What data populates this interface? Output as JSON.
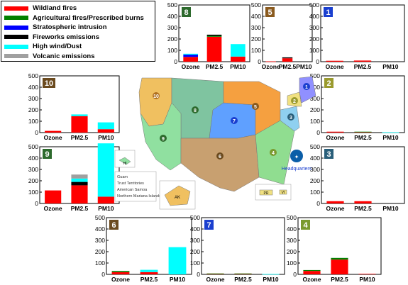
{
  "legend": [
    {
      "name": "Wildland fires",
      "color": "#ff0000"
    },
    {
      "name": "Agricultural fires/Prescribed burns",
      "color": "#008000"
    },
    {
      "name": "Stratospheric intrusion",
      "color": "#0000ff"
    },
    {
      "name": "Fireworks emissions",
      "color": "#000000"
    },
    {
      "name": "High wind/Dust",
      "color": "#00ffff"
    },
    {
      "name": "Volcanic emissions",
      "color": "#a0a0a0"
    }
  ],
  "map": {
    "headquarters_label": "Headquarters",
    "territories": [
      "Guam",
      "Trust Territories",
      "American Samoa",
      "Northern Mariana Islands"
    ],
    "inset_labels": [
      "PR",
      "VI",
      "AK",
      "HI"
    ]
  },
  "chart_data": [
    {
      "type": "bar",
      "region": "8",
      "badge_color": "#2d6a2d",
      "title": "",
      "categories": [
        "Ozone",
        "PM2.5",
        "PM10"
      ],
      "ylim": [
        0,
        500
      ],
      "yticks": [
        0,
        100,
        200,
        300,
        400,
        500
      ],
      "series": [
        {
          "name": "Wildland fires",
          "values": [
            42,
            220,
            45
          ]
        },
        {
          "name": "Agricultural fires/Prescribed burns",
          "values": [
            0,
            8,
            0
          ]
        },
        {
          "name": "Stratospheric intrusion",
          "values": [
            20,
            0,
            0
          ]
        },
        {
          "name": "Fireworks emissions",
          "values": [
            0,
            10,
            0
          ]
        },
        {
          "name": "High wind/Dust",
          "values": [
            8,
            0,
            110
          ]
        },
        {
          "name": "Volcanic emissions",
          "values": [
            0,
            0,
            0
          ]
        }
      ]
    },
    {
      "type": "bar",
      "region": "5",
      "badge_color": "#8a5a1e",
      "title": "",
      "categories": [
        "Ozone",
        "PM2.5",
        "PM10"
      ],
      "ylim": [
        0,
        500
      ],
      "yticks": [
        0,
        100,
        200,
        300,
        400,
        500
      ],
      "series": [
        {
          "name": "Wildland fires",
          "values": [
            3,
            30,
            0
          ]
        },
        {
          "name": "Agricultural fires/Prescribed burns",
          "values": [
            0,
            0,
            0
          ]
        },
        {
          "name": "Stratospheric intrusion",
          "values": [
            0,
            0,
            0
          ]
        },
        {
          "name": "Fireworks emissions",
          "values": [
            0,
            8,
            0
          ]
        },
        {
          "name": "High wind/Dust",
          "values": [
            0,
            0,
            0
          ]
        },
        {
          "name": "Volcanic emissions",
          "values": [
            0,
            0,
            0
          ]
        }
      ]
    },
    {
      "type": "bar",
      "region": "1",
      "badge_color": "#1a3fcf",
      "title": "",
      "categories": [
        "Ozone",
        "PM2.5",
        "PM10"
      ],
      "ylim": [
        0,
        500
      ],
      "yticks": [
        0,
        100,
        200,
        300,
        400,
        500
      ],
      "series": [
        {
          "name": "Wildland fires",
          "values": [
            8,
            10,
            0
          ]
        },
        {
          "name": "Agricultural fires/Prescribed burns",
          "values": [
            0,
            0,
            0
          ]
        },
        {
          "name": "Stratospheric intrusion",
          "values": [
            0,
            0,
            0
          ]
        },
        {
          "name": "Fireworks emissions",
          "values": [
            0,
            0,
            0
          ]
        },
        {
          "name": "High wind/Dust",
          "values": [
            0,
            0,
            0
          ]
        },
        {
          "name": "Volcanic emissions",
          "values": [
            0,
            0,
            0
          ]
        }
      ]
    },
    {
      "type": "bar",
      "region": "10",
      "badge_color": "#6b4a1e",
      "title": "",
      "categories": [
        "Ozone",
        "PM2.5",
        "PM10"
      ],
      "ylim": [
        0,
        500
      ],
      "yticks": [
        0,
        100,
        200,
        300,
        400,
        500
      ],
      "series": [
        {
          "name": "Wildland fires",
          "values": [
            15,
            145,
            30
          ]
        },
        {
          "name": "Agricultural fires/Prescribed burns",
          "values": [
            0,
            0,
            0
          ]
        },
        {
          "name": "Stratospheric intrusion",
          "values": [
            0,
            0,
            0
          ]
        },
        {
          "name": "Fireworks emissions",
          "values": [
            0,
            0,
            0
          ]
        },
        {
          "name": "High wind/Dust",
          "values": [
            0,
            15,
            60
          ]
        },
        {
          "name": "Volcanic emissions",
          "values": [
            0,
            0,
            0
          ]
        }
      ]
    },
    {
      "type": "bar",
      "region": "2",
      "badge_color": "#9a9a2e",
      "title": "",
      "categories": [
        "Ozone",
        "PM2.5",
        "PM10"
      ],
      "ylim": [
        0,
        500
      ],
      "yticks": [
        0,
        100,
        200,
        300,
        400,
        500
      ],
      "series": [
        {
          "name": "Wildland fires",
          "values": [
            8,
            5,
            0
          ]
        },
        {
          "name": "Agricultural fires/Prescribed burns",
          "values": [
            0,
            3,
            0
          ]
        },
        {
          "name": "Stratospheric intrusion",
          "values": [
            0,
            0,
            0
          ]
        },
        {
          "name": "Fireworks emissions",
          "values": [
            0,
            0,
            0
          ]
        },
        {
          "name": "High wind/Dust",
          "values": [
            0,
            0,
            3
          ]
        },
        {
          "name": "Volcanic emissions",
          "values": [
            0,
            0,
            0
          ]
        }
      ]
    },
    {
      "type": "bar",
      "region": "9",
      "badge_color": "#2d6a2d",
      "title": "",
      "categories": [
        "Ozone",
        "PM2.5",
        "PM10"
      ],
      "ylim": [
        0,
        500
      ],
      "yticks": [
        0,
        100,
        200,
        300,
        400,
        500
      ],
      "series": [
        {
          "name": "Wildland fires",
          "values": [
            115,
            160,
            60
          ]
        },
        {
          "name": "Agricultural fires/Prescribed burns",
          "values": [
            0,
            0,
            0
          ]
        },
        {
          "name": "Stratospheric intrusion",
          "values": [
            0,
            0,
            0
          ]
        },
        {
          "name": "Fireworks emissions",
          "values": [
            0,
            30,
            0
          ]
        },
        {
          "name": "High wind/Dust",
          "values": [
            0,
            30,
            470
          ]
        },
        {
          "name": "Volcanic emissions",
          "values": [
            0,
            35,
            0
          ]
        }
      ]
    },
    {
      "type": "bar",
      "region": "3",
      "badge_color": "#2a5f7a",
      "title": "",
      "categories": [
        "Ozone",
        "PM2.5",
        "PM10"
      ],
      "ylim": [
        0,
        500
      ],
      "yticks": [
        0,
        100,
        200,
        300,
        400,
        500
      ],
      "series": [
        {
          "name": "Wildland fires",
          "values": [
            20,
            20,
            0
          ]
        },
        {
          "name": "Agricultural fires/Prescribed burns",
          "values": [
            0,
            0,
            0
          ]
        },
        {
          "name": "Stratospheric intrusion",
          "values": [
            0,
            0,
            0
          ]
        },
        {
          "name": "Fireworks emissions",
          "values": [
            0,
            0,
            0
          ]
        },
        {
          "name": "High wind/Dust",
          "values": [
            0,
            0,
            0
          ]
        },
        {
          "name": "Volcanic emissions",
          "values": [
            0,
            0,
            0
          ]
        }
      ]
    },
    {
      "type": "bar",
      "region": "6",
      "badge_color": "#6b4a1e",
      "title": "",
      "categories": [
        "Ozone",
        "PM2.5",
        "PM10"
      ],
      "ylim": [
        0,
        500
      ],
      "yticks": [
        0,
        100,
        200,
        300,
        400,
        500
      ],
      "series": [
        {
          "name": "Wildland fires",
          "values": [
            20,
            20,
            0
          ]
        },
        {
          "name": "Agricultural fires/Prescribed burns",
          "values": [
            10,
            0,
            0
          ]
        },
        {
          "name": "Stratospheric intrusion",
          "values": [
            0,
            0,
            0
          ]
        },
        {
          "name": "Fireworks emissions",
          "values": [
            0,
            0,
            0
          ]
        },
        {
          "name": "High wind/Dust",
          "values": [
            0,
            20,
            240
          ]
        },
        {
          "name": "Volcanic emissions",
          "values": [
            0,
            0,
            0
          ]
        }
      ]
    },
    {
      "type": "bar",
      "region": "7",
      "badge_color": "#1a3fcf",
      "title": "",
      "categories": [
        "Ozone",
        "PM2.5",
        "PM10"
      ],
      "ylim": [
        0,
        500
      ],
      "yticks": [
        0,
        100,
        200,
        300,
        400,
        500
      ],
      "series": [
        {
          "name": "Wildland fires",
          "values": [
            5,
            5,
            0
          ]
        },
        {
          "name": "Agricultural fires/Prescribed burns",
          "values": [
            3,
            3,
            0
          ]
        },
        {
          "name": "Stratospheric intrusion",
          "values": [
            0,
            0,
            0
          ]
        },
        {
          "name": "Fireworks emissions",
          "values": [
            0,
            0,
            0
          ]
        },
        {
          "name": "High wind/Dust",
          "values": [
            0,
            0,
            3
          ]
        },
        {
          "name": "Volcanic emissions",
          "values": [
            0,
            0,
            0
          ]
        }
      ]
    },
    {
      "type": "bar",
      "region": "4",
      "badge_color": "#7a9a2e",
      "title": "",
      "categories": [
        "Ozone",
        "PM2.5",
        "PM10"
      ],
      "ylim": [
        0,
        500
      ],
      "yticks": [
        0,
        100,
        200,
        300,
        400,
        500
      ],
      "series": [
        {
          "name": "Wildland fires",
          "values": [
            30,
            130,
            5
          ]
        },
        {
          "name": "Agricultural fires/Prescribed burns",
          "values": [
            8,
            15,
            0
          ]
        },
        {
          "name": "Stratospheric intrusion",
          "values": [
            0,
            0,
            0
          ]
        },
        {
          "name": "Fireworks emissions",
          "values": [
            0,
            0,
            0
          ]
        },
        {
          "name": "High wind/Dust",
          "values": [
            0,
            0,
            0
          ]
        },
        {
          "name": "Volcanic emissions",
          "values": [
            0,
            0,
            0
          ]
        }
      ]
    }
  ]
}
